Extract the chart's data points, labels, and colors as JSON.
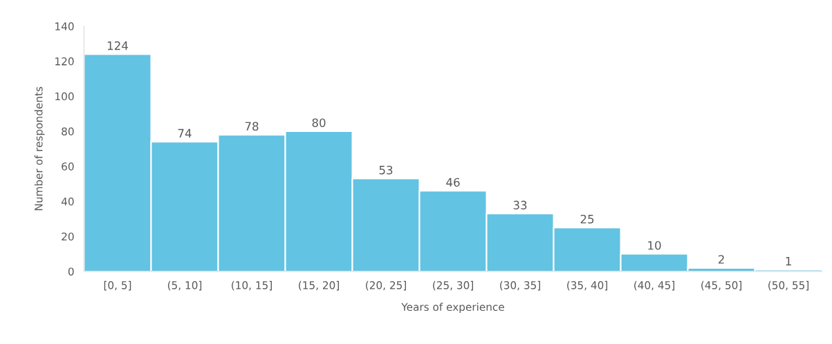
{
  "chart_data": {
    "type": "bar",
    "xlabel": "Years of experience",
    "ylabel": "Number of respondents",
    "categories": [
      "[0, 5]",
      "(5, 10]",
      "(10, 15]",
      "(15, 20]",
      "(20, 25]",
      "(25, 30]",
      "(30, 35]",
      "(35, 40]",
      "(40, 45]",
      "(45, 50]",
      "(50, 55]"
    ],
    "values": [
      124,
      74,
      78,
      80,
      53,
      46,
      33,
      25,
      10,
      2,
      1
    ],
    "color": "#62c3e3",
    "ylim": [
      0,
      140
    ],
    "yticks": [
      0,
      20,
      40,
      60,
      80,
      100,
      120,
      140
    ],
    "data_labels": true,
    "grid": false
  }
}
